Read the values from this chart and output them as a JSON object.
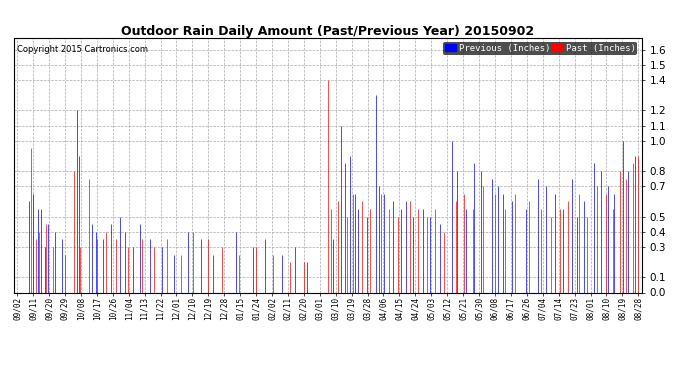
{
  "title": "Outdoor Rain Daily Amount (Past/Previous Year) 20150902",
  "copyright": "Copyright 2015 Cartronics.com",
  "legend_previous": "Previous (Inches)",
  "legend_past": "Past (Inches)",
  "color_previous": "#0000FF",
  "color_past": "#FF0000",
  "bg_color": "#FFFFFF",
  "plot_bg_color": "#FFFFFF",
  "yticks": [
    0.0,
    0.1,
    0.3,
    0.4,
    0.5,
    0.7,
    0.8,
    1.0,
    1.1,
    1.2,
    1.4,
    1.5,
    1.6
  ],
  "ylim": [
    0.0,
    1.68
  ],
  "title_fontsize": 9,
  "copyright_fontsize": 6,
  "x_labels": [
    "09/02",
    "09/11",
    "09/20",
    "09/29",
    "10/08",
    "10/17",
    "10/26",
    "11/04",
    "11/13",
    "11/22",
    "12/01",
    "12/10",
    "12/19",
    "12/28",
    "01/15",
    "01/24",
    "02/02",
    "02/11",
    "02/20",
    "03/01",
    "03/10",
    "03/19",
    "03/28",
    "04/06",
    "04/15",
    "04/24",
    "05/03",
    "05/12",
    "05/21",
    "05/30",
    "06/08",
    "06/17",
    "06/26",
    "07/04",
    "07/14",
    "07/23",
    "08/01",
    "08/10",
    "08/19",
    "08/28"
  ],
  "n_days": 365
}
